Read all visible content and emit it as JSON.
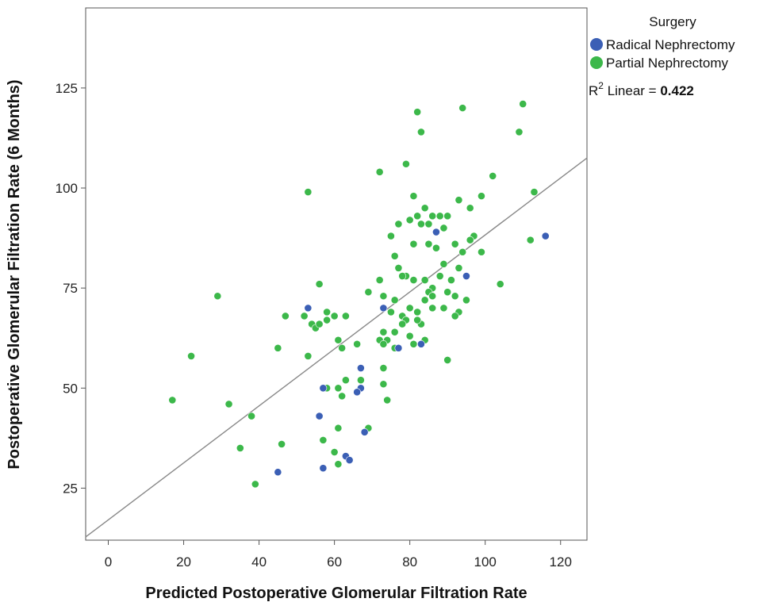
{
  "chart_data": {
    "type": "scatter",
    "title": "",
    "xlabel": "Predicted Postoperative Glomerular Filtration Rate",
    "ylabel": "Postoperative Glomerular Filtration Rate (6 Months)",
    "xlim": [
      -6,
      127
    ],
    "ylim": [
      12,
      145
    ],
    "xticks": [
      0,
      20,
      40,
      60,
      80,
      100,
      120
    ],
    "yticks": [
      25,
      50,
      75,
      100,
      125
    ],
    "grid": false,
    "legend": {
      "title": "Surgery",
      "placement": "right",
      "entries": [
        "Radical Nephrectomy",
        "Partial Nephrectomy"
      ]
    },
    "fit_line": {
      "label_prefix": "R",
      "label_sup": "2",
      "label_text": " Linear = ",
      "label_value": "0.422",
      "x": [
        -6,
        127
      ],
      "y": [
        12.8,
        107.5
      ]
    },
    "colors": {
      "Radical Nephrectomy": "#3b5fb5",
      "Partial Nephrectomy": "#3cb84a",
      "fit_line": "#888888"
    },
    "series": [
      {
        "name": "Radical Nephrectomy",
        "points": [
          [
            53,
            70
          ],
          [
            73,
            70
          ],
          [
            87,
            89
          ],
          [
            116,
            88
          ],
          [
            57,
            50
          ],
          [
            67,
            50
          ],
          [
            66,
            49
          ],
          [
            67,
            55
          ],
          [
            56,
            43
          ],
          [
            68,
            39
          ],
          [
            45,
            29
          ],
          [
            57,
            30
          ],
          [
            63,
            33
          ],
          [
            64,
            32
          ],
          [
            77,
            60
          ],
          [
            83,
            61
          ],
          [
            95,
            78
          ]
        ]
      },
      {
        "name": "Partial Nephrectomy",
        "points": [
          [
            110,
            121
          ],
          [
            82,
            119
          ],
          [
            94,
            120
          ],
          [
            83,
            114
          ],
          [
            109,
            114
          ],
          [
            72,
            104
          ],
          [
            79,
            106
          ],
          [
            102,
            103
          ],
          [
            113,
            99
          ],
          [
            53,
            99
          ],
          [
            81,
            98
          ],
          [
            93,
            97
          ],
          [
            99,
            98
          ],
          [
            84,
            95
          ],
          [
            96,
            95
          ],
          [
            82,
            93
          ],
          [
            86,
            93
          ],
          [
            88,
            93
          ],
          [
            90,
            93
          ],
          [
            80,
            92
          ],
          [
            83,
            91
          ],
          [
            77,
            91
          ],
          [
            85,
            91
          ],
          [
            75,
            88
          ],
          [
            89,
            90
          ],
          [
            97,
            88
          ],
          [
            96,
            87
          ],
          [
            92,
            86
          ],
          [
            81,
            86
          ],
          [
            85,
            86
          ],
          [
            87,
            85
          ],
          [
            112,
            87
          ],
          [
            99,
            84
          ],
          [
            94,
            84
          ],
          [
            76,
            83
          ],
          [
            89,
            81
          ],
          [
            93,
            80
          ],
          [
            77,
            80
          ],
          [
            79,
            78
          ],
          [
            84,
            77
          ],
          [
            88,
            78
          ],
          [
            91,
            77
          ],
          [
            78,
            78
          ],
          [
            72,
            77
          ],
          [
            81,
            77
          ],
          [
            56,
            76
          ],
          [
            104,
            76
          ],
          [
            86,
            75
          ],
          [
            85,
            74
          ],
          [
            86,
            73
          ],
          [
            90,
            74
          ],
          [
            84,
            72
          ],
          [
            76,
            72
          ],
          [
            69,
            74
          ],
          [
            73,
            73
          ],
          [
            95,
            72
          ],
          [
            92,
            73
          ],
          [
            29,
            73
          ],
          [
            80,
            70
          ],
          [
            82,
            69
          ],
          [
            89,
            70
          ],
          [
            86,
            70
          ],
          [
            75,
            69
          ],
          [
            93,
            69
          ],
          [
            92,
            68
          ],
          [
            78,
            68
          ],
          [
            47,
            68
          ],
          [
            58,
            69
          ],
          [
            60,
            68
          ],
          [
            63,
            68
          ],
          [
            52,
            68
          ],
          [
            58,
            67
          ],
          [
            54,
            66
          ],
          [
            55,
            65
          ],
          [
            56,
            66
          ],
          [
            83,
            66
          ],
          [
            79,
            67
          ],
          [
            82,
            67
          ],
          [
            78,
            66
          ],
          [
            76,
            64
          ],
          [
            73,
            64
          ],
          [
            80,
            63
          ],
          [
            72,
            62
          ],
          [
            74,
            62
          ],
          [
            84,
            62
          ],
          [
            73,
            61
          ],
          [
            61,
            62
          ],
          [
            66,
            61
          ],
          [
            81,
            61
          ],
          [
            45,
            60
          ],
          [
            62,
            60
          ],
          [
            76,
            60
          ],
          [
            22,
            58
          ],
          [
            53,
            58
          ],
          [
            90,
            57
          ],
          [
            73,
            55
          ],
          [
            63,
            52
          ],
          [
            67,
            52
          ],
          [
            58,
            50
          ],
          [
            61,
            50
          ],
          [
            73,
            51
          ],
          [
            62,
            48
          ],
          [
            17,
            47
          ],
          [
            74,
            47
          ],
          [
            32,
            46
          ],
          [
            38,
            43
          ],
          [
            69,
            40
          ],
          [
            61,
            40
          ],
          [
            57,
            37
          ],
          [
            35,
            35
          ],
          [
            46,
            36
          ],
          [
            60,
            34
          ],
          [
            64,
            32
          ],
          [
            61,
            31
          ],
          [
            39,
            26
          ]
        ]
      }
    ]
  }
}
